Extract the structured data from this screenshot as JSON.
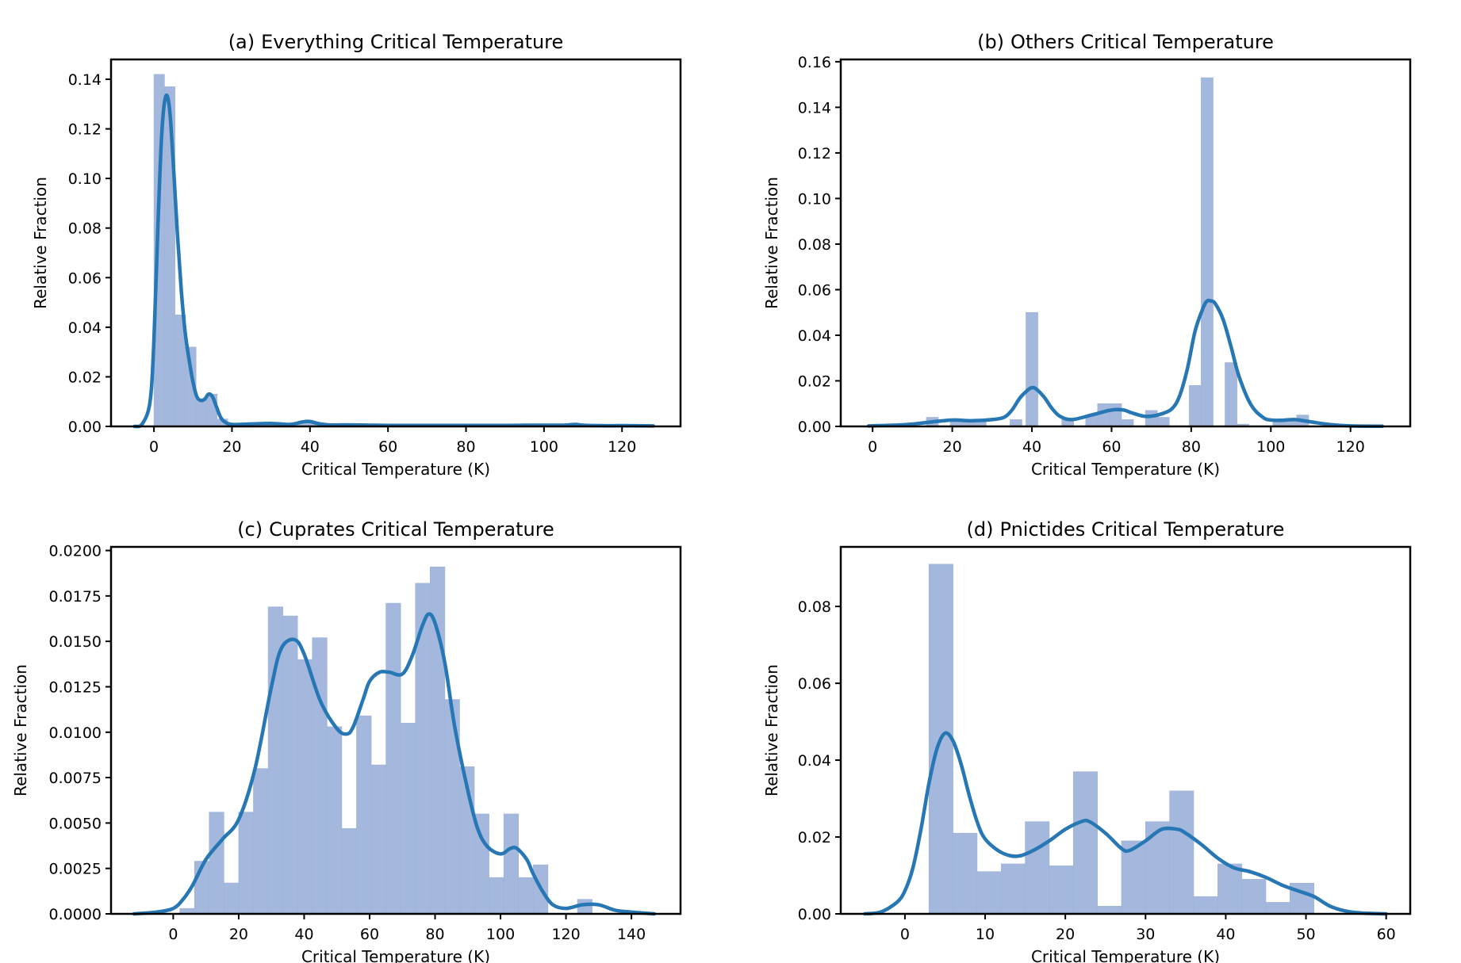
{
  "figure": {
    "background": "#ffffff"
  },
  "style": {
    "bar_color": "#a3b8dc",
    "bar_edge": "#9db2d6",
    "curve_color": "#2677b4",
    "axis_color": "#000000"
  },
  "chart_data": [
    {
      "id": "a",
      "type": "bar",
      "title_prefix": "(a)",
      "title": "Everything Critical Temperature",
      "xlabel": "Critical Temperature (K)",
      "ylabel": "Relative Fraction",
      "xlim": [
        -11,
        135
      ],
      "ylim": [
        0,
        0.148
      ],
      "xticks": [
        0,
        20,
        40,
        60,
        80,
        100,
        120
      ],
      "xtick_labels": [
        "0",
        "20",
        "40",
        "60",
        "80",
        100,
        120
      ],
      "yticks": [
        0.0,
        0.02,
        0.04,
        0.06,
        0.08,
        0.1,
        0.12,
        0.14
      ],
      "ytick_labels": [
        "0.00",
        "0.02",
        "0.04",
        "0.06",
        "0.08",
        "0.10",
        "0.12",
        "0.14"
      ],
      "bins": [
        {
          "x0": 0,
          "x1": 2.7,
          "value": 0.142
        },
        {
          "x0": 2.7,
          "x1": 5.4,
          "value": 0.137
        },
        {
          "x0": 5.4,
          "x1": 8.1,
          "value": 0.045
        },
        {
          "x0": 8.1,
          "x1": 10.8,
          "value": 0.032
        },
        {
          "x0": 10.8,
          "x1": 13.5,
          "value": 0.011
        },
        {
          "x0": 13.5,
          "x1": 16.2,
          "value": 0.013
        },
        {
          "x0": 16.2,
          "x1": 18.9,
          "value": 0.003
        },
        {
          "x0": 18.9,
          "x1": 21.6,
          "value": 0.001
        },
        {
          "x0": 21.6,
          "x1": 24.3,
          "value": 0.001
        },
        {
          "x0": 24.3,
          "x1": 27.0,
          "value": 0.0015
        },
        {
          "x0": 27.0,
          "x1": 29.7,
          "value": 0.001
        },
        {
          "x0": 29.7,
          "x1": 32.4,
          "value": 0.001
        },
        {
          "x0": 32.4,
          "x1": 35.1,
          "value": 0.001
        },
        {
          "x0": 35.1,
          "x1": 37.8,
          "value": 0.0015
        },
        {
          "x0": 37.8,
          "x1": 40.5,
          "value": 0.002
        },
        {
          "x0": 40.5,
          "x1": 43.2,
          "value": 0.001
        }
      ],
      "kde": {
        "x": [
          -5,
          -3,
          -1,
          0,
          1,
          2,
          3,
          4,
          5,
          6,
          7,
          8,
          9,
          10,
          11,
          12,
          13,
          14,
          15,
          16,
          17,
          18,
          20,
          25,
          30,
          35,
          38,
          40,
          42,
          45,
          50,
          55,
          60,
          70,
          80,
          90,
          95,
          100,
          105,
          108,
          110,
          115,
          120,
          128
        ],
        "y": [
          0,
          0.001,
          0.01,
          0.035,
          0.08,
          0.118,
          0.133,
          0.128,
          0.105,
          0.078,
          0.055,
          0.038,
          0.027,
          0.018,
          0.012,
          0.0105,
          0.011,
          0.013,
          0.012,
          0.008,
          0.004,
          0.002,
          0.0008,
          0.001,
          0.0012,
          0.0008,
          0.0018,
          0.002,
          0.0012,
          0.0006,
          0.0006,
          0.0005,
          0.0004,
          0.0004,
          0.0004,
          0.0004,
          0.0005,
          0.0005,
          0.0005,
          0.0008,
          0.0005,
          0.0003,
          0.0003,
          0.0002
        ]
      }
    },
    {
      "id": "b",
      "type": "bar",
      "title_prefix": "(b)",
      "title": "Others Critical Temperature",
      "xlabel": "Critical Temperature (K)",
      "ylabel": "Relative Fraction",
      "xlim": [
        -8,
        135
      ],
      "ylim": [
        0,
        0.161
      ],
      "xticks": [
        0,
        20,
        40,
        60,
        80,
        100,
        120
      ],
      "xtick_labels": [
        "0",
        "20",
        "40",
        "60",
        "80",
        100,
        120
      ],
      "yticks": [
        0.0,
        0.02,
        0.04,
        0.06,
        0.08,
        0.1,
        0.12,
        0.14,
        0.16
      ],
      "ytick_labels": [
        "0.00",
        "0.02",
        "0.04",
        "0.06",
        "0.08",
        "0.10",
        "0.12",
        "0.14",
        "0.16"
      ],
      "bins": [
        {
          "x0": 13.5,
          "x1": 16.5,
          "value": 0.004
        },
        {
          "x0": 19.5,
          "x1": 22.5,
          "value": 0.002
        },
        {
          "x0": 22.5,
          "x1": 25.5,
          "value": 0.002
        },
        {
          "x0": 25.5,
          "x1": 28.5,
          "value": 0.002
        },
        {
          "x0": 34.5,
          "x1": 37.5,
          "value": 0.003
        },
        {
          "x0": 38.5,
          "x1": 41.5,
          "value": 0.05
        },
        {
          "x0": 47.5,
          "x1": 50.5,
          "value": 0.003
        },
        {
          "x0": 53.5,
          "x1": 56.5,
          "value": 0.005
        },
        {
          "x0": 56.5,
          "x1": 59.5,
          "value": 0.01
        },
        {
          "x0": 59.5,
          "x1": 62.5,
          "value": 0.01
        },
        {
          "x0": 62.5,
          "x1": 65.5,
          "value": 0.003
        },
        {
          "x0": 68.5,
          "x1": 71.5,
          "value": 0.007
        },
        {
          "x0": 71.5,
          "x1": 74.5,
          "value": 0.004
        },
        {
          "x0": 79.5,
          "x1": 82.5,
          "value": 0.018
        },
        {
          "x0": 82.5,
          "x1": 85.5,
          "value": 0.153
        },
        {
          "x0": 88.5,
          "x1": 91.5,
          "value": 0.028
        },
        {
          "x0": 91.5,
          "x1": 94.5,
          "value": 0.001
        },
        {
          "x0": 100.5,
          "x1": 103.5,
          "value": 0.003
        },
        {
          "x0": 103.5,
          "x1": 106.5,
          "value": 0.003
        },
        {
          "x0": 106.5,
          "x1": 109.5,
          "value": 0.005
        }
      ],
      "kde": {
        "x": [
          -1,
          5,
          10,
          15,
          20,
          25,
          30,
          33,
          35,
          37,
          39,
          40,
          41,
          43,
          45,
          47,
          50,
          55,
          60,
          63,
          65,
          68,
          70,
          72,
          75,
          77,
          79,
          81,
          83,
          84,
          85,
          86,
          88,
          90,
          92,
          95,
          98,
          100,
          103,
          106,
          110,
          115,
          120,
          128
        ],
        "y": [
          0.0002,
          0.0005,
          0.001,
          0.002,
          0.0028,
          0.0025,
          0.003,
          0.004,
          0.0072,
          0.0125,
          0.016,
          0.017,
          0.0165,
          0.013,
          0.008,
          0.0045,
          0.003,
          0.005,
          0.0072,
          0.0072,
          0.006,
          0.0045,
          0.0045,
          0.0052,
          0.0075,
          0.013,
          0.025,
          0.042,
          0.052,
          0.055,
          0.055,
          0.054,
          0.047,
          0.035,
          0.022,
          0.0095,
          0.004,
          0.0028,
          0.0027,
          0.003,
          0.002,
          0.0008,
          0.0002,
          0.0001
        ]
      }
    },
    {
      "id": "c",
      "type": "bar",
      "title_prefix": "(c)",
      "title": "Cuprates Critical Temperature",
      "xlabel": "Critical Temperature (K)",
      "ylabel": "Relative Fraction",
      "xlim": [
        -19,
        155
      ],
      "ylim": [
        0,
        0.0202
      ],
      "xticks": [
        0,
        20,
        40,
        60,
        80,
        100,
        120,
        140
      ],
      "xtick_labels": [
        "0",
        "20",
        "40",
        "60",
        "80",
        100,
        120,
        140
      ],
      "yticks": [
        0.0,
        0.0025,
        0.005,
        0.0075,
        0.01,
        0.0125,
        0.015,
        0.0175,
        0.02
      ],
      "ytick_labels": [
        "0.0000",
        "0.0025",
        "0.0050",
        "0.0075",
        "0.0100",
        "0.0125",
        "0.0150",
        "0.0175",
        "0.0200"
      ],
      "bins": [
        {
          "x0": 2,
          "x1": 6.5,
          "value": 0.0003
        },
        {
          "x0": 6.5,
          "x1": 11,
          "value": 0.0029
        },
        {
          "x0": 11,
          "x1": 15.5,
          "value": 0.0056
        },
        {
          "x0": 15.5,
          "x1": 20,
          "value": 0.0017
        },
        {
          "x0": 20,
          "x1": 24.5,
          "value": 0.0056
        },
        {
          "x0": 24.5,
          "x1": 29,
          "value": 0.008
        },
        {
          "x0": 29,
          "x1": 33.5,
          "value": 0.0169
        },
        {
          "x0": 33.5,
          "x1": 38,
          "value": 0.0164
        },
        {
          "x0": 38,
          "x1": 42.5,
          "value": 0.014
        },
        {
          "x0": 42.5,
          "x1": 47,
          "value": 0.0152
        },
        {
          "x0": 47,
          "x1": 51.5,
          "value": 0.0103
        },
        {
          "x0": 51.5,
          "x1": 56,
          "value": 0.0047
        },
        {
          "x0": 56,
          "x1": 60.5,
          "value": 0.0109
        },
        {
          "x0": 60.5,
          "x1": 65,
          "value": 0.0082
        },
        {
          "x0": 65,
          "x1": 69.5,
          "value": 0.0171
        },
        {
          "x0": 69.5,
          "x1": 74,
          "value": 0.0105
        },
        {
          "x0": 74,
          "x1": 78.5,
          "value": 0.0182
        },
        {
          "x0": 78.5,
          "x1": 83,
          "value": 0.0191
        },
        {
          "x0": 83,
          "x1": 87.5,
          "value": 0.0118
        },
        {
          "x0": 87.5,
          "x1": 92,
          "value": 0.0081
        },
        {
          "x0": 92,
          "x1": 96.5,
          "value": 0.0055
        },
        {
          "x0": 96.5,
          "x1": 101,
          "value": 0.002
        },
        {
          "x0": 101,
          "x1": 105.5,
          "value": 0.0055
        },
        {
          "x0": 105.5,
          "x1": 110,
          "value": 0.002
        },
        {
          "x0": 110,
          "x1": 114.5,
          "value": 0.0027
        },
        {
          "x0": 114.5,
          "x1": 119,
          "value": 0.0
        },
        {
          "x0": 119,
          "x1": 123.5,
          "value": 0.0
        },
        {
          "x0": 123.5,
          "x1": 128,
          "value": 0.0008
        }
      ],
      "kde": {
        "x": [
          -12,
          -5,
          0,
          3,
          6,
          10,
          15,
          20,
          25,
          30,
          33,
          37,
          40,
          45,
          50,
          53,
          55,
          58,
          60,
          63,
          66,
          70,
          73,
          76,
          78,
          80,
          83,
          86,
          90,
          93,
          96,
          100,
          103,
          105,
          108,
          110,
          113,
          116,
          120,
          125,
          130,
          135,
          140,
          147
        ],
        "y": [
          0,
          0.0001,
          0.0003,
          0.0008,
          0.0016,
          0.003,
          0.0041,
          0.0052,
          0.008,
          0.0125,
          0.0146,
          0.0151,
          0.0143,
          0.0117,
          0.0102,
          0.0099,
          0.0103,
          0.0118,
          0.0128,
          0.0133,
          0.0133,
          0.0132,
          0.0142,
          0.0158,
          0.0165,
          0.016,
          0.0138,
          0.0103,
          0.0068,
          0.0047,
          0.0037,
          0.0033,
          0.0036,
          0.0036,
          0.003,
          0.0022,
          0.0012,
          0.0005,
          0.0003,
          0.0005,
          0.0005,
          0.0002,
          0.0001,
          0
        ]
      }
    },
    {
      "id": "d",
      "type": "bar",
      "title_prefix": "(d)",
      "title": "Pnictides Critical Temperature",
      "xlabel": "Critical Temperature (K)",
      "ylabel": "Relative Fraction",
      "xlim": [
        -8,
        63
      ],
      "ylim": [
        0,
        0.0955
      ],
      "xticks": [
        0,
        10,
        20,
        30,
        40,
        50,
        60
      ],
      "xtick_labels": [
        "0",
        "10",
        "20",
        "30",
        "40",
        "50",
        "60"
      ],
      "yticks": [
        0.0,
        0.02,
        0.04,
        0.06,
        0.08
      ],
      "ytick_labels": [
        "0.00",
        "0.02",
        "0.04",
        "0.06",
        "0.08"
      ],
      "bins": [
        {
          "x0": 3,
          "x1": 6,
          "value": 0.091
        },
        {
          "x0": 6,
          "x1": 9,
          "value": 0.021
        },
        {
          "x0": 9,
          "x1": 12,
          "value": 0.011
        },
        {
          "x0": 12,
          "x1": 15,
          "value": 0.013
        },
        {
          "x0": 15,
          "x1": 18,
          "value": 0.024
        },
        {
          "x0": 18,
          "x1": 21,
          "value": 0.0125
        },
        {
          "x0": 21,
          "x1": 24,
          "value": 0.037
        },
        {
          "x0": 24,
          "x1": 27,
          "value": 0.002
        },
        {
          "x0": 27,
          "x1": 30,
          "value": 0.019
        },
        {
          "x0": 30,
          "x1": 33,
          "value": 0.024
        },
        {
          "x0": 33,
          "x1": 36,
          "value": 0.032
        },
        {
          "x0": 36,
          "x1": 39,
          "value": 0.0045
        },
        {
          "x0": 39,
          "x1": 42,
          "value": 0.013
        },
        {
          "x0": 42,
          "x1": 45,
          "value": 0.009
        },
        {
          "x0": 45,
          "x1": 48,
          "value": 0.003
        },
        {
          "x0": 48,
          "x1": 51,
          "value": 0.008
        }
      ],
      "kde": {
        "x": [
          -5,
          -3,
          -1,
          0,
          1,
          2,
          3,
          4,
          5,
          6,
          7,
          8,
          9,
          10,
          12,
          14,
          16,
          18,
          20,
          22,
          23,
          25,
          27,
          28,
          30,
          32,
          34,
          35,
          37,
          39,
          41,
          43,
          45,
          47,
          49,
          51,
          53,
          55,
          57,
          60
        ],
        "y": [
          0,
          0.0005,
          0.003,
          0.006,
          0.012,
          0.022,
          0.034,
          0.043,
          0.047,
          0.045,
          0.039,
          0.031,
          0.024,
          0.0195,
          0.016,
          0.015,
          0.0165,
          0.019,
          0.022,
          0.024,
          0.024,
          0.021,
          0.017,
          0.0165,
          0.019,
          0.022,
          0.022,
          0.021,
          0.018,
          0.0145,
          0.012,
          0.011,
          0.0095,
          0.0075,
          0.006,
          0.0045,
          0.002,
          0.0007,
          0.0002,
          0
        ]
      }
    }
  ]
}
